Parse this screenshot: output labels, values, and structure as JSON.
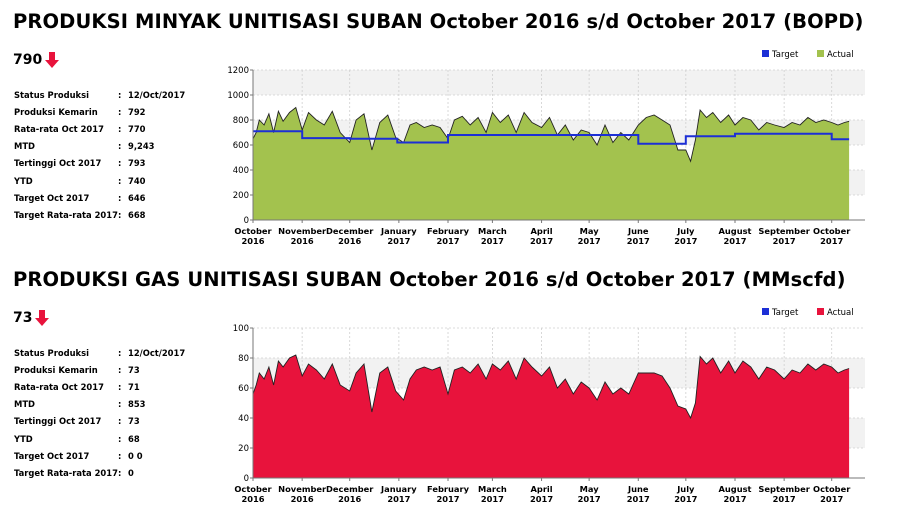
{
  "oil": {
    "title": "PRODUKSI MINYAK UNITISASI SUBAN October 2016 s/d October 2017 (BOPD)",
    "current_value": "790",
    "trend_icon": "down-arrow-icon",
    "stats": [
      {
        "label": "Status Produksi",
        "value": "12/Oct/2017"
      },
      {
        "label": "Produksi Kemarin",
        "value": "792"
      },
      {
        "label": "Rata-rata Oct 2017",
        "value": "770"
      },
      {
        "label": "MTD",
        "value": "9,243"
      },
      {
        "label": "Tertinggi Oct 2017",
        "value": "793"
      },
      {
        "label": "YTD",
        "value": "740"
      },
      {
        "label": "Target Oct 2017",
        "value": "646"
      },
      {
        "label": "Target Rata-rata 2017",
        "value": "668"
      }
    ]
  },
  "gas": {
    "title": "PRODUKSI GAS UNITISASI SUBAN October 2016 s/d October 2017 (MMscfd)",
    "current_value": "73",
    "trend_icon": "down-arrow-icon",
    "stats": [
      {
        "label": "Status Produksi",
        "value": "12/Oct/2017"
      },
      {
        "label": "Produksi Kemarin",
        "value": "73"
      },
      {
        "label": "Rata-rata Oct 2017",
        "value": "71"
      },
      {
        "label": "MTD",
        "value": "853"
      },
      {
        "label": "Tertinggi Oct 2017",
        "value": "73"
      },
      {
        "label": "YTD",
        "value": "68"
      },
      {
        "label": "Target Oct 2017",
        "value": "0 0"
      },
      {
        "label": "Target Rata-rata 2017",
        "value": "0"
      }
    ]
  },
  "colors": {
    "oil_area": "#a3c24e",
    "gas_area": "#e8133c",
    "target_line": "#1c2fd6",
    "grid_band": "#f2f2f2",
    "arrow": "#e8133c"
  },
  "chart_data": [
    {
      "type": "area",
      "name": "oil",
      "ylim": [
        0,
        1200
      ],
      "yticks": [
        0,
        200,
        400,
        600,
        800,
        1000,
        1200
      ],
      "xlim": [
        "2016-10-01",
        "2017-10-22"
      ],
      "x_ticks": [
        {
          "date": "2016-10-01",
          "label": [
            "October",
            "2016"
          ]
        },
        {
          "date": "2016-11-01",
          "label": [
            "November",
            "2016"
          ]
        },
        {
          "date": "2016-12-01",
          "label": [
            "December",
            "2016"
          ]
        },
        {
          "date": "2017-01-01",
          "label": [
            "January",
            "2017"
          ]
        },
        {
          "date": "2017-02-01",
          "label": [
            "February",
            "2017"
          ]
        },
        {
          "date": "2017-03-01",
          "label": [
            "March",
            "2017"
          ]
        },
        {
          "date": "2017-04-01",
          "label": [
            "April",
            "2017"
          ]
        },
        {
          "date": "2017-05-01",
          "label": [
            "May",
            "2017"
          ]
        },
        {
          "date": "2017-06-01",
          "label": [
            "June",
            "2017"
          ]
        },
        {
          "date": "2017-07-01",
          "label": [
            "July",
            "2017"
          ]
        },
        {
          "date": "2017-08-01",
          "label": [
            "August",
            "2017"
          ]
        },
        {
          "date": "2017-09-01",
          "label": [
            "September",
            "2017"
          ]
        },
        {
          "date": "2017-10-01",
          "label": [
            "October",
            "2017"
          ]
        }
      ],
      "legend": [
        "Target",
        "Actual"
      ],
      "legend_position": "top-right",
      "series": [
        {
          "name": "Actual",
          "style": "area",
          "points": [
            [
              "2016-10-01",
              650
            ],
            [
              "2016-10-03",
              700
            ],
            [
              "2016-10-05",
              800
            ],
            [
              "2016-10-08",
              760
            ],
            [
              "2016-10-11",
              850
            ],
            [
              "2016-10-14",
              700
            ],
            [
              "2016-10-17",
              870
            ],
            [
              "2016-10-20",
              790
            ],
            [
              "2016-10-24",
              860
            ],
            [
              "2016-10-28",
              900
            ],
            [
              "2016-11-01",
              720
            ],
            [
              "2016-11-05",
              860
            ],
            [
              "2016-11-10",
              800
            ],
            [
              "2016-11-15",
              760
            ],
            [
              "2016-11-20",
              870
            ],
            [
              "2016-11-25",
              700
            ],
            [
              "2016-12-01",
              620
            ],
            [
              "2016-12-05",
              800
            ],
            [
              "2016-12-10",
              850
            ],
            [
              "2016-12-15",
              560
            ],
            [
              "2016-12-20",
              780
            ],
            [
              "2016-12-25",
              840
            ],
            [
              "2016-12-30",
              660
            ],
            [
              "2017-01-04",
              620
            ],
            [
              "2017-01-08",
              760
            ],
            [
              "2017-01-12",
              780
            ],
            [
              "2017-01-17",
              740
            ],
            [
              "2017-01-22",
              760
            ],
            [
              "2017-01-27",
              740
            ],
            [
              "2017-02-01",
              650
            ],
            [
              "2017-02-05",
              800
            ],
            [
              "2017-02-10",
              830
            ],
            [
              "2017-02-15",
              760
            ],
            [
              "2017-02-20",
              820
            ],
            [
              "2017-02-25",
              700
            ],
            [
              "2017-03-01",
              860
            ],
            [
              "2017-03-06",
              780
            ],
            [
              "2017-03-11",
              840
            ],
            [
              "2017-03-16",
              700
            ],
            [
              "2017-03-21",
              860
            ],
            [
              "2017-03-26",
              780
            ],
            [
              "2017-04-01",
              740
            ],
            [
              "2017-04-06",
              820
            ],
            [
              "2017-04-11",
              680
            ],
            [
              "2017-04-16",
              760
            ],
            [
              "2017-04-21",
              640
            ],
            [
              "2017-04-26",
              720
            ],
            [
              "2017-05-01",
              700
            ],
            [
              "2017-05-06",
              600
            ],
            [
              "2017-05-11",
              760
            ],
            [
              "2017-05-16",
              620
            ],
            [
              "2017-05-21",
              700
            ],
            [
              "2017-05-26",
              640
            ],
            [
              "2017-06-01",
              760
            ],
            [
              "2017-06-06",
              820
            ],
            [
              "2017-06-11",
              840
            ],
            [
              "2017-06-16",
              800
            ],
            [
              "2017-06-21",
              760
            ],
            [
              "2017-06-26",
              560
            ],
            [
              "2017-07-01",
              560
            ],
            [
              "2017-07-04",
              470
            ],
            [
              "2017-07-07",
              640
            ],
            [
              "2017-07-10",
              880
            ],
            [
              "2017-07-14",
              820
            ],
            [
              "2017-07-18",
              860
            ],
            [
              "2017-07-23",
              780
            ],
            [
              "2017-07-28",
              840
            ],
            [
              "2017-08-01",
              760
            ],
            [
              "2017-08-06",
              820
            ],
            [
              "2017-08-11",
              800
            ],
            [
              "2017-08-16",
              720
            ],
            [
              "2017-08-21",
              780
            ],
            [
              "2017-08-26",
              760
            ],
            [
              "2017-09-01",
              740
            ],
            [
              "2017-09-06",
              780
            ],
            [
              "2017-09-11",
              760
            ],
            [
              "2017-09-16",
              820
            ],
            [
              "2017-09-21",
              780
            ],
            [
              "2017-09-26",
              800
            ],
            [
              "2017-10-01",
              780
            ],
            [
              "2017-10-05",
              760
            ],
            [
              "2017-10-09",
              780
            ],
            [
              "2017-10-12",
              790
            ]
          ]
        },
        {
          "name": "Target",
          "style": "line",
          "points": [
            [
              "2016-10-01",
              710
            ],
            [
              "2016-11-01",
              710
            ],
            [
              "2016-11-01",
              655
            ],
            [
              "2016-12-01",
              655
            ],
            [
              "2016-12-01",
              650
            ],
            [
              "2016-12-31",
              650
            ],
            [
              "2016-12-31",
              620
            ],
            [
              "2017-02-01",
              620
            ],
            [
              "2017-02-01",
              680
            ],
            [
              "2017-06-01",
              680
            ],
            [
              "2017-06-01",
              610
            ],
            [
              "2017-07-01",
              610
            ],
            [
              "2017-07-01",
              670
            ],
            [
              "2017-08-01",
              670
            ],
            [
              "2017-08-01",
              690
            ],
            [
              "2017-10-01",
              690
            ],
            [
              "2017-10-01",
              646
            ],
            [
              "2017-10-12",
              646
            ]
          ]
        }
      ]
    },
    {
      "type": "area",
      "name": "gas",
      "ylim": [
        0,
        100
      ],
      "yticks": [
        0,
        20,
        40,
        60,
        80,
        100
      ],
      "xlim": [
        "2016-10-01",
        "2017-10-22"
      ],
      "x_ticks": [
        {
          "date": "2016-10-01",
          "label": [
            "October",
            "2016"
          ]
        },
        {
          "date": "2016-11-01",
          "label": [
            "November",
            "2016"
          ]
        },
        {
          "date": "2016-12-01",
          "label": [
            "December",
            "2016"
          ]
        },
        {
          "date": "2017-01-01",
          "label": [
            "January",
            "2017"
          ]
        },
        {
          "date": "2017-02-01",
          "label": [
            "February",
            "2017"
          ]
        },
        {
          "date": "2017-03-01",
          "label": [
            "March",
            "2017"
          ]
        },
        {
          "date": "2017-04-01",
          "label": [
            "April",
            "2017"
          ]
        },
        {
          "date": "2017-05-01",
          "label": [
            "May",
            "2017"
          ]
        },
        {
          "date": "2017-06-01",
          "label": [
            "June",
            "2017"
          ]
        },
        {
          "date": "2017-07-01",
          "label": [
            "July",
            "2017"
          ]
        },
        {
          "date": "2017-08-01",
          "label": [
            "August",
            "2017"
          ]
        },
        {
          "date": "2017-09-01",
          "label": [
            "September",
            "2017"
          ]
        },
        {
          "date": "2017-10-01",
          "label": [
            "October",
            "2017"
          ]
        }
      ],
      "legend": [
        "Target",
        "Actual"
      ],
      "legend_position": "top-right",
      "series": [
        {
          "name": "Actual",
          "style": "area",
          "points": [
            [
              "2016-10-01",
              56
            ],
            [
              "2016-10-03",
              62
            ],
            [
              "2016-10-05",
              70
            ],
            [
              "2016-10-08",
              66
            ],
            [
              "2016-10-11",
              74
            ],
            [
              "2016-10-14",
              62
            ],
            [
              "2016-10-17",
              78
            ],
            [
              "2016-10-20",
              74
            ],
            [
              "2016-10-24",
              80
            ],
            [
              "2016-10-28",
              82
            ],
            [
              "2016-11-01",
              68
            ],
            [
              "2016-11-05",
              76
            ],
            [
              "2016-11-10",
              72
            ],
            [
              "2016-11-15",
              66
            ],
            [
              "2016-11-20",
              76
            ],
            [
              "2016-11-25",
              62
            ],
            [
              "2016-12-01",
              58
            ],
            [
              "2016-12-05",
              70
            ],
            [
              "2016-12-10",
              76
            ],
            [
              "2016-12-15",
              44
            ],
            [
              "2016-12-20",
              70
            ],
            [
              "2016-12-25",
              74
            ],
            [
              "2016-12-30",
              58
            ],
            [
              "2017-01-04",
              52
            ],
            [
              "2017-01-08",
              66
            ],
            [
              "2017-01-12",
              72
            ],
            [
              "2017-01-17",
              74
            ],
            [
              "2017-01-22",
              72
            ],
            [
              "2017-01-27",
              74
            ],
            [
              "2017-02-01",
              56
            ],
            [
              "2017-02-05",
              72
            ],
            [
              "2017-02-10",
              74
            ],
            [
              "2017-02-15",
              70
            ],
            [
              "2017-02-20",
              76
            ],
            [
              "2017-02-25",
              66
            ],
            [
              "2017-03-01",
              76
            ],
            [
              "2017-03-06",
              72
            ],
            [
              "2017-03-11",
              78
            ],
            [
              "2017-03-16",
              66
            ],
            [
              "2017-03-21",
              80
            ],
            [
              "2017-03-26",
              74
            ],
            [
              "2017-04-01",
              68
            ],
            [
              "2017-04-06",
              74
            ],
            [
              "2017-04-11",
              60
            ],
            [
              "2017-04-16",
              66
            ],
            [
              "2017-04-21",
              56
            ],
            [
              "2017-04-26",
              64
            ],
            [
              "2017-05-01",
              60
            ],
            [
              "2017-05-06",
              52
            ],
            [
              "2017-05-11",
              64
            ],
            [
              "2017-05-16",
              56
            ],
            [
              "2017-05-21",
              60
            ],
            [
              "2017-05-26",
              56
            ],
            [
              "2017-06-01",
              70
            ],
            [
              "2017-06-06",
              70
            ],
            [
              "2017-06-11",
              70
            ],
            [
              "2017-06-16",
              68
            ],
            [
              "2017-06-21",
              60
            ],
            [
              "2017-06-26",
              48
            ],
            [
              "2017-07-01",
              46
            ],
            [
              "2017-07-04",
              40
            ],
            [
              "2017-07-07",
              50
            ],
            [
              "2017-07-10",
              81
            ],
            [
              "2017-07-14",
              76
            ],
            [
              "2017-07-18",
              80
            ],
            [
              "2017-07-23",
              70
            ],
            [
              "2017-07-28",
              78
            ],
            [
              "2017-08-01",
              70
            ],
            [
              "2017-08-06",
              78
            ],
            [
              "2017-08-11",
              74
            ],
            [
              "2017-08-16",
              66
            ],
            [
              "2017-08-21",
              74
            ],
            [
              "2017-08-26",
              72
            ],
            [
              "2017-09-01",
              66
            ],
            [
              "2017-09-06",
              72
            ],
            [
              "2017-09-11",
              70
            ],
            [
              "2017-09-16",
              76
            ],
            [
              "2017-09-21",
              72
            ],
            [
              "2017-09-26",
              76
            ],
            [
              "2017-10-01",
              74
            ],
            [
              "2017-10-05",
              70
            ],
            [
              "2017-10-09",
              72
            ],
            [
              "2017-10-12",
              73
            ]
          ]
        }
      ]
    }
  ]
}
